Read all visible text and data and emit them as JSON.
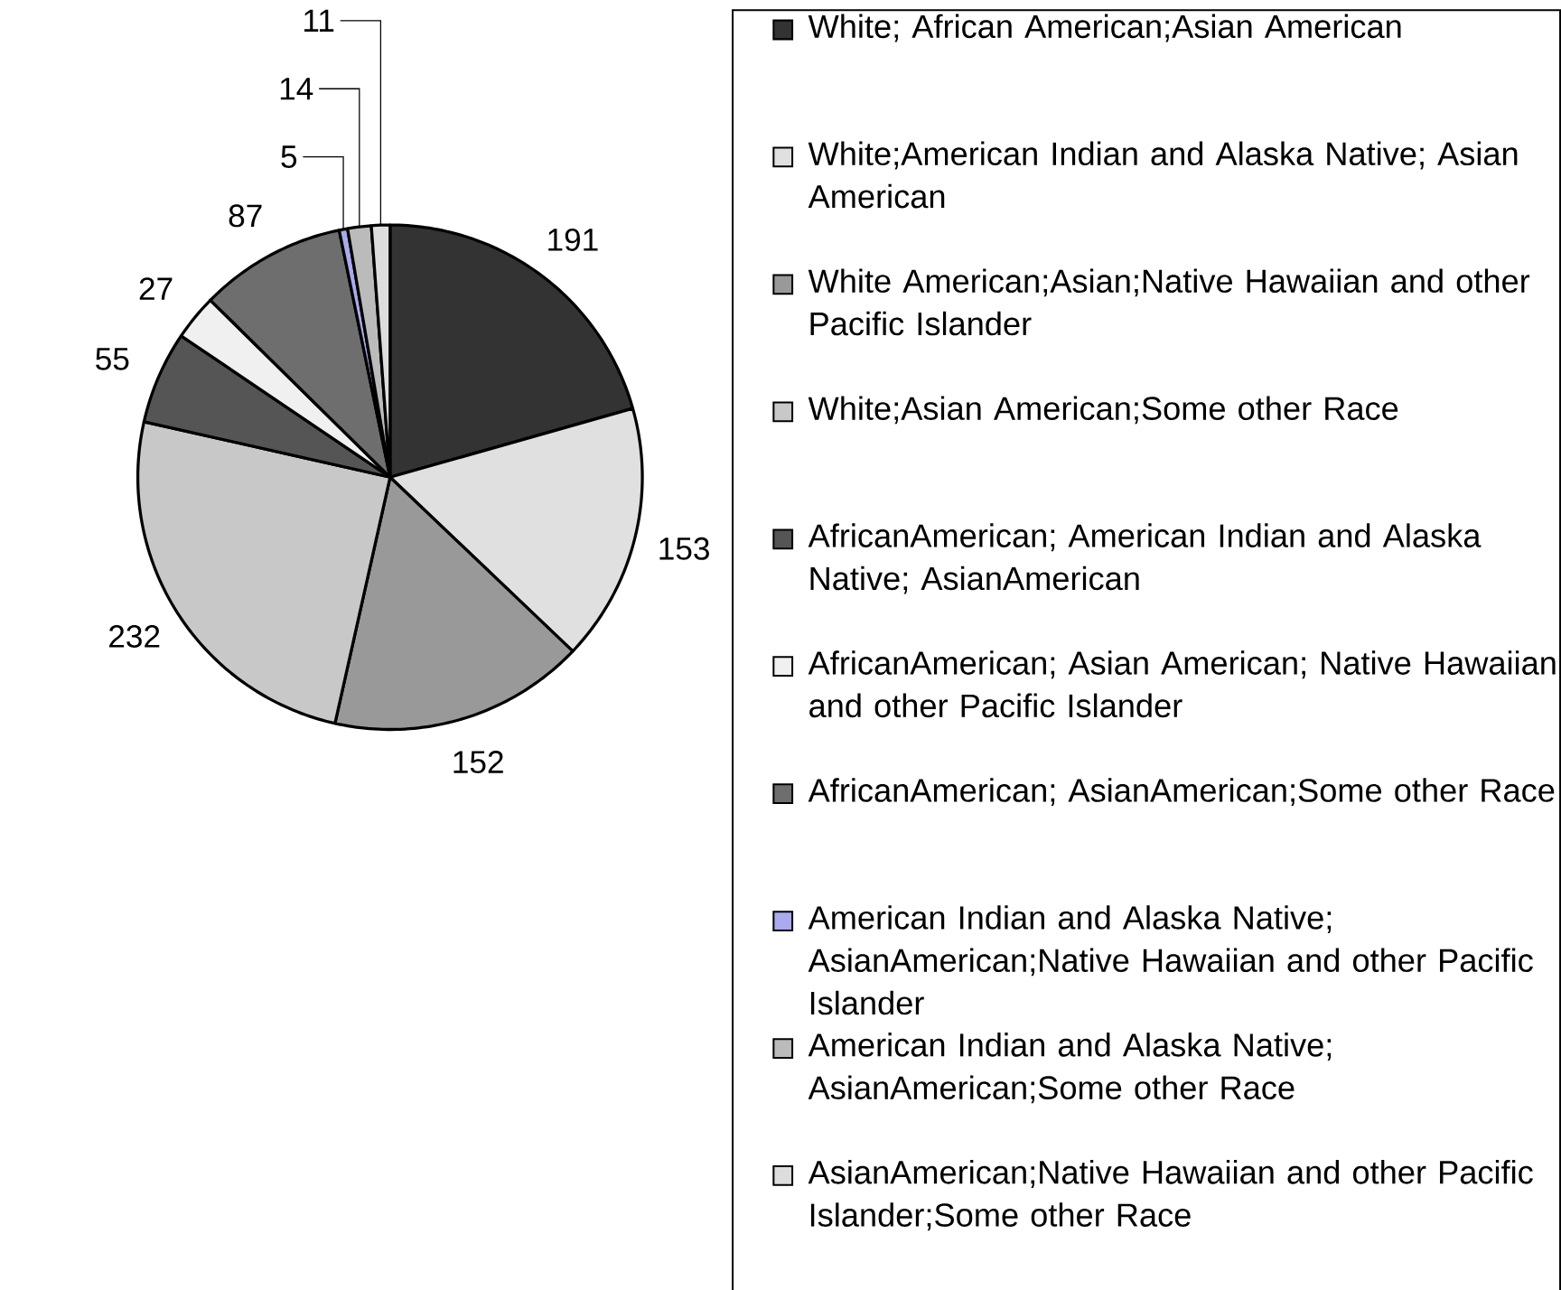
{
  "chart_data": {
    "type": "pie",
    "categories": [
      "White; African American;Asian American",
      "White;American Indian and Alaska Native; Asian American",
      "White American;Asian;Native Hawaiian and other Pacific Islander",
      "White;Asian American;Some other Race",
      "AfricanAmerican; American Indian and Alaska Native; AsianAmerican",
      "AfricanAmerican; Asian American; Native Hawaiian and other Pacific Islander",
      "AfricanAmerican; AsianAmerican;Some other Race",
      "American Indian and Alaska Native; AsianAmerican;Native Hawaiian and other Pacific Islander",
      "American Indian and Alaska Native; AsianAmerican;Some other Race",
      "AsianAmerican;Native Hawaiian and other Pacific Islander;Some other Race"
    ],
    "values": [
      191,
      153,
      152,
      232,
      55,
      27,
      87,
      5,
      14,
      11
    ],
    "colors": [
      "#333333",
      "#e0e0e0",
      "#999999",
      "#c8c8c8",
      "#555555",
      "#f0f0f0",
      "#6e6e6e",
      "#aaaaee",
      "#bbbbbb",
      "#dddddd"
    ],
    "data_labels": true,
    "legend": "right"
  }
}
